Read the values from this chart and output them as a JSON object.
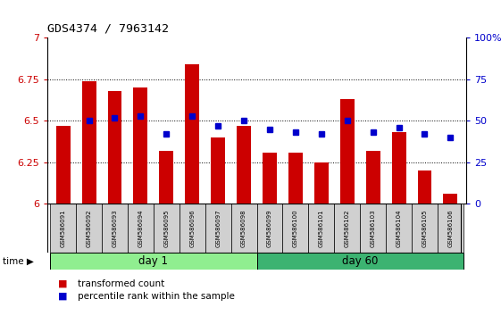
{
  "title": "GDS4374 / 7963142",
  "samples": [
    "GSM586091",
    "GSM586092",
    "GSM586093",
    "GSM586094",
    "GSM586095",
    "GSM586096",
    "GSM586097",
    "GSM586098",
    "GSM586099",
    "GSM586100",
    "GSM586101",
    "GSM586102",
    "GSM586103",
    "GSM586104",
    "GSM586105",
    "GSM586106"
  ],
  "bar_values": [
    6.47,
    6.74,
    6.68,
    6.7,
    6.32,
    6.84,
    6.4,
    6.47,
    6.31,
    6.31,
    6.25,
    6.63,
    6.32,
    6.43,
    6.2,
    6.06
  ],
  "dot_values": [
    null,
    50,
    52,
    53,
    42,
    53,
    47,
    50,
    45,
    43,
    42,
    50,
    43,
    46,
    42,
    40
  ],
  "bar_color": "#cc0000",
  "dot_color": "#0000cc",
  "ylim_left": [
    6.0,
    7.0
  ],
  "ylim_right": [
    0,
    100
  ],
  "yticks_left": [
    6.0,
    6.25,
    6.5,
    6.75,
    7.0
  ],
  "yticks_right": [
    0,
    25,
    50,
    75,
    100
  ],
  "ytick_labels_left": [
    "6",
    "6.25",
    "6.5",
    "6.75",
    "7"
  ],
  "ytick_labels_right": [
    "0",
    "25",
    "50",
    "75",
    "100%"
  ],
  "grid_vals": [
    6.25,
    6.5,
    6.75
  ],
  "day1_samples": 8,
  "day60_samples": 8,
  "day1_label": "day 1",
  "day60_label": "day 60",
  "time_label": "time",
  "legend_bar": "transformed count",
  "legend_dot": "percentile rank within the sample",
  "bar_width": 0.55,
  "bar_color_hex": "#cc0000",
  "dot_color_hex": "#0000cc",
  "tick_color_left": "#cc0000",
  "tick_color_right": "#0000cc",
  "day1_color": "#90ee90",
  "day60_color": "#3cb371",
  "sample_box_color": "#d0d0d0"
}
